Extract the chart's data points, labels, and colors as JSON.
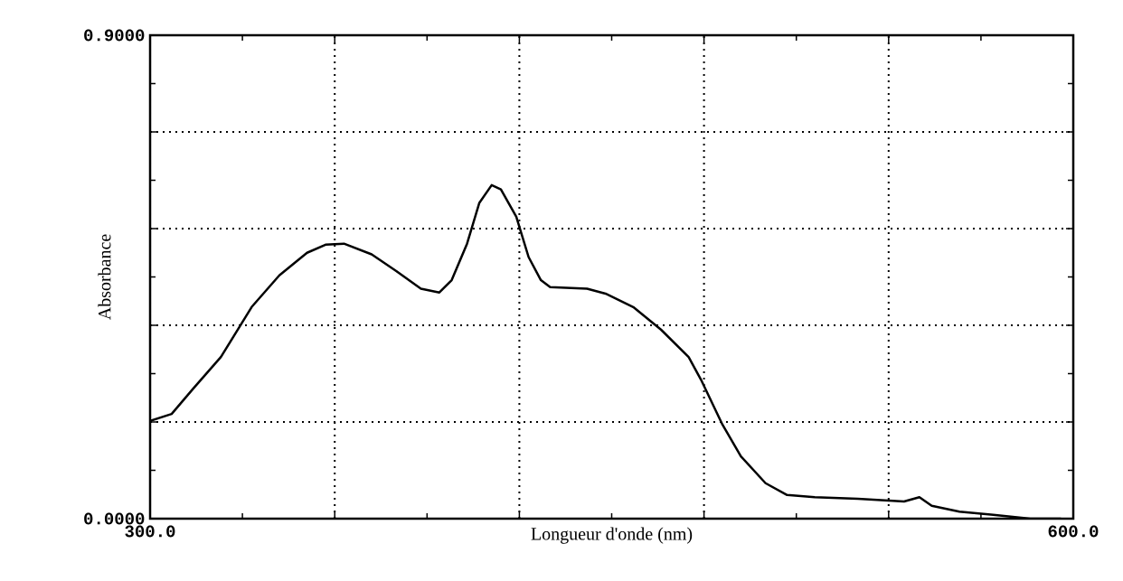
{
  "chart_data": {
    "type": "line",
    "xlabel": "Longueur d'onde (nm)",
    "ylabel": "Absorbance",
    "x": [
      300,
      307,
      314,
      323,
      333,
      342,
      351,
      357,
      363,
      372,
      380,
      388,
      394,
      398,
      403,
      407,
      411,
      414,
      419,
      423,
      427,
      430,
      442,
      448,
      457,
      466,
      475,
      479,
      486,
      492,
      500,
      507,
      516,
      530,
      545,
      550,
      554,
      563,
      574,
      586,
      596
    ],
    "series": [
      {
        "color": "#000000",
        "values": [
          0.182,
          0.195,
          0.242,
          0.301,
          0.394,
          0.453,
          0.495,
          0.51,
          0.512,
          0.492,
          0.461,
          0.428,
          0.421,
          0.444,
          0.512,
          0.588,
          0.621,
          0.613,
          0.562,
          0.487,
          0.444,
          0.431,
          0.428,
          0.419,
          0.394,
          0.352,
          0.301,
          0.259,
          0.175,
          0.116,
          0.066,
          0.044,
          0.04,
          0.037,
          0.032,
          0.04,
          0.024,
          0.013,
          0.007,
          0.0,
          0.0
        ]
      }
    ],
    "xlim": [
      300,
      600
    ],
    "ylim": [
      0,
      0.9
    ],
    "xticks": [
      {
        "value": 300,
        "label": "300.0"
      },
      {
        "value": 360,
        "label": null
      },
      {
        "value": 420,
        "label": null
      },
      {
        "value": 480,
        "label": null
      },
      {
        "value": 540,
        "label": null
      },
      {
        "value": 600,
        "label": "600.0"
      }
    ],
    "yticks": [
      {
        "value": 0,
        "label": "0.0000"
      },
      {
        "value": 0.18,
        "label": null
      },
      {
        "value": 0.36,
        "label": null
      },
      {
        "value": 0.54,
        "label": null
      },
      {
        "value": 0.72,
        "label": null
      },
      {
        "value": 0.9,
        "label": "0.9000"
      }
    ],
    "grid": true,
    "marker": "none",
    "line_style": "solid"
  }
}
